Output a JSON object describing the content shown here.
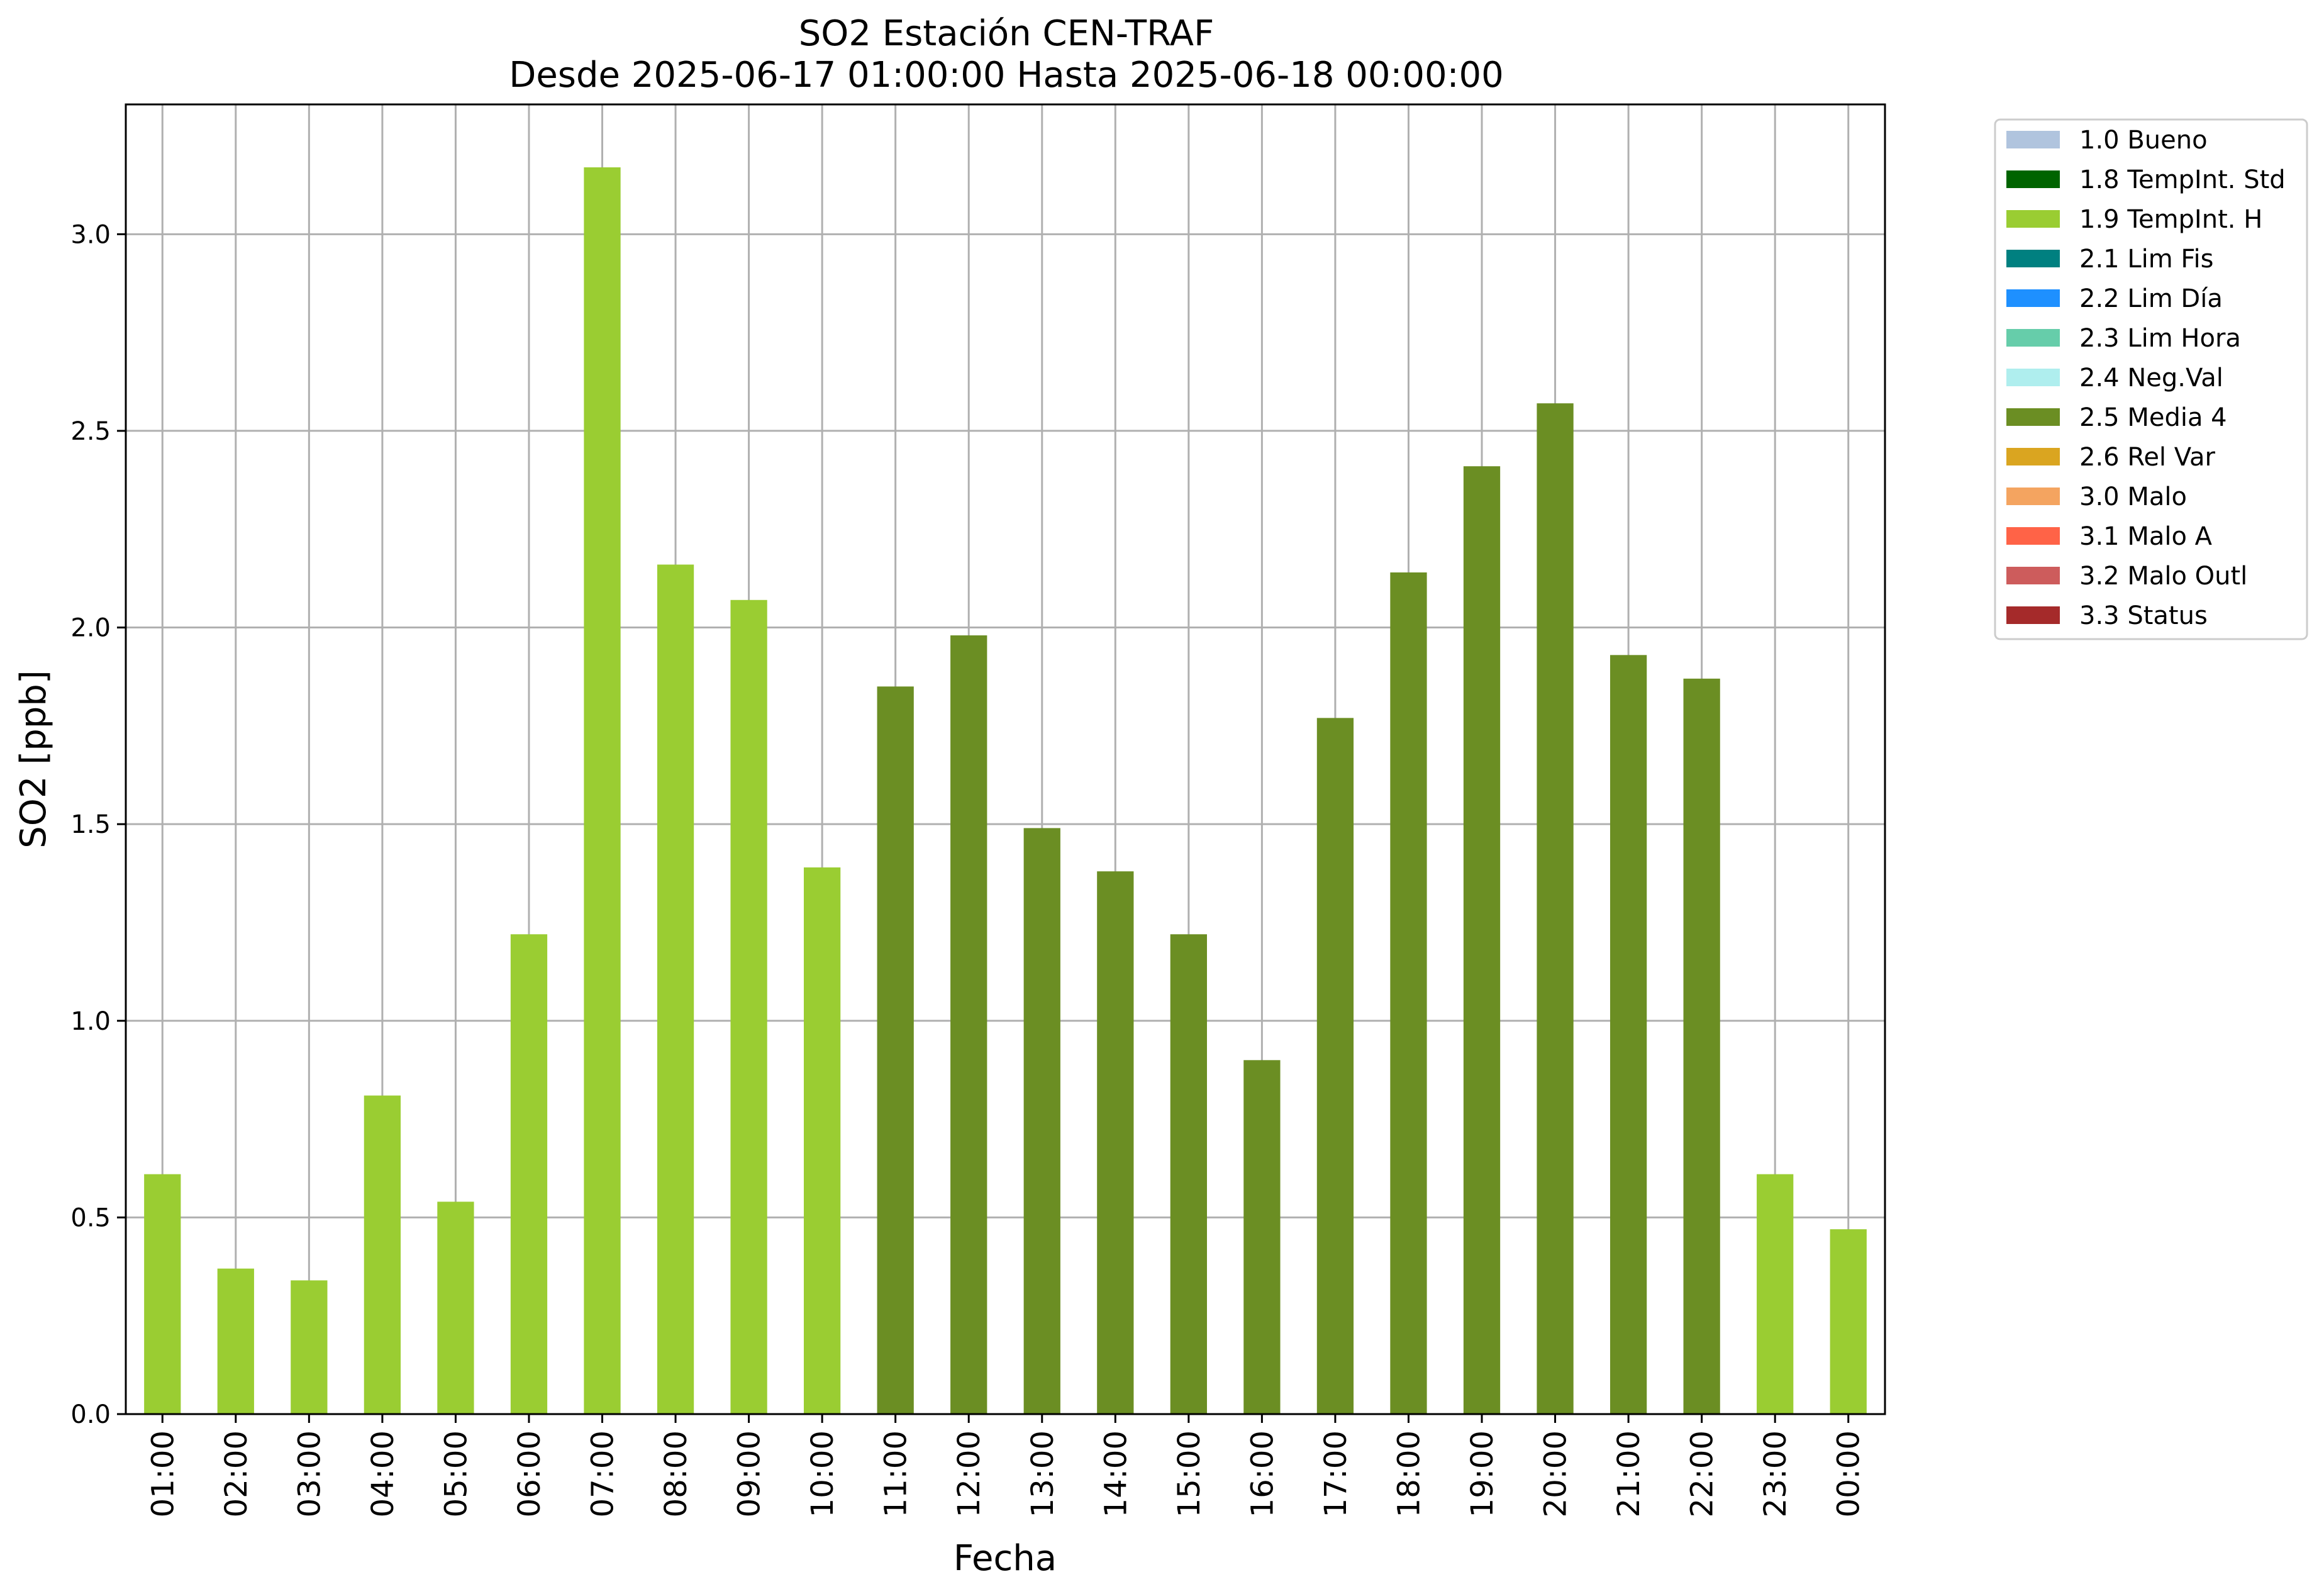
{
  "chart_data": {
    "type": "bar",
    "title": "SO2 Estación CEN-TRAF",
    "subtitle": "Desde 2025-06-17 01:00:00 Hasta 2025-06-18 00:00:00",
    "xlabel": "Fecha",
    "ylabel": "SO2 [ppb]",
    "ylim": [
      0,
      3.33
    ],
    "yticks": [
      "0.0",
      "0.5",
      "1.0",
      "1.5",
      "2.0",
      "2.5",
      "3.0"
    ],
    "grid": true,
    "legend_position": "outside-top-right",
    "categories": [
      "01:00",
      "02:00",
      "03:00",
      "04:00",
      "05:00",
      "06:00",
      "07:00",
      "08:00",
      "09:00",
      "10:00",
      "11:00",
      "12:00",
      "13:00",
      "14:00",
      "15:00",
      "16:00",
      "17:00",
      "18:00",
      "19:00",
      "20:00",
      "21:00",
      "22:00",
      "23:00",
      "00:00"
    ],
    "values": [
      0.61,
      0.37,
      0.34,
      0.81,
      0.54,
      1.22,
      3.17,
      2.16,
      2.07,
      1.39,
      1.85,
      1.98,
      1.49,
      1.38,
      1.22,
      0.9,
      1.77,
      2.14,
      2.41,
      2.57,
      1.93,
      1.87,
      0.61,
      0.47
    ],
    "flags": [
      "1.9 TempInt. H",
      "1.9 TempInt. H",
      "1.9 TempInt. H",
      "1.9 TempInt. H",
      "1.9 TempInt. H",
      "1.9 TempInt. H",
      "1.9 TempInt. H",
      "1.9 TempInt. H",
      "1.9 TempInt. H",
      "1.9 TempInt. H",
      "2.5 Media 4",
      "2.5 Media 4",
      "2.5 Media 4",
      "2.5 Media 4",
      "2.5 Media 4",
      "2.5 Media 4",
      "2.5 Media 4",
      "2.5 Media 4",
      "2.5 Media 4",
      "2.5 Media 4",
      "2.5 Media 4",
      "2.5 Media 4",
      "1.9 TempInt. H",
      "1.9 TempInt. H"
    ],
    "legend": [
      {
        "label": "1.0 Bueno",
        "color": "#b0c4de"
      },
      {
        "label": "1.8 TempInt. Std",
        "color": "#006400"
      },
      {
        "label": "1.9 TempInt. H",
        "color": "#9acd32"
      },
      {
        "label": "2.1 Lim Fis",
        "color": "#008080"
      },
      {
        "label": "2.2 Lim Día",
        "color": "#1e90ff"
      },
      {
        "label": "2.3 Lim Hora",
        "color": "#66cdaa"
      },
      {
        "label": "2.4 Neg.Val",
        "color": "#afeeee"
      },
      {
        "label": "2.5 Media 4",
        "color": "#6b8e23"
      },
      {
        "label": "2.6 Rel Var",
        "color": "#daa520"
      },
      {
        "label": "3.0 Malo",
        "color": "#f4a460"
      },
      {
        "label": "3.1 Malo A",
        "color": "#ff6347"
      },
      {
        "label": "3.2 Malo Outl",
        "color": "#cd5c5c"
      },
      {
        "label": "3.3 Status",
        "color": "#a52a2a"
      }
    ]
  }
}
